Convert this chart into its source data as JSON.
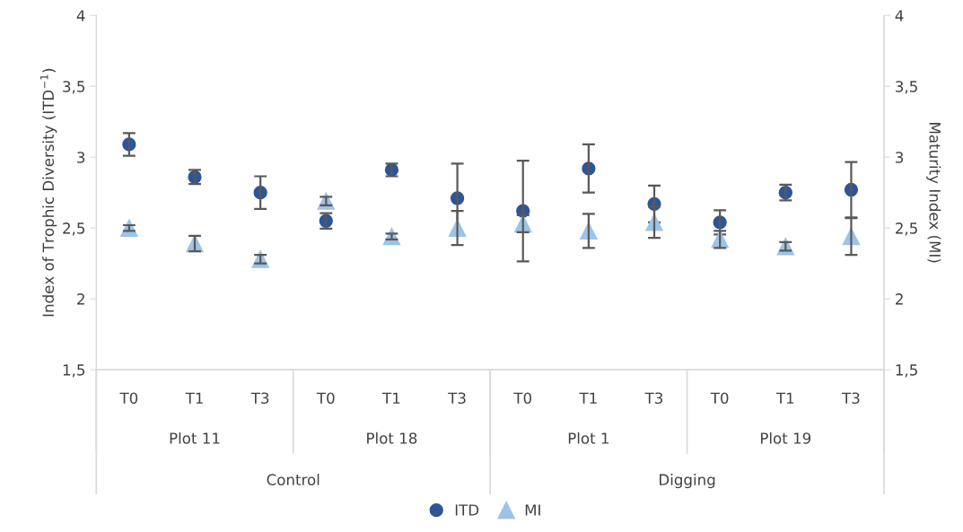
{
  "chart_data": {
    "type": "scatter",
    "ylabel": "Index of Trophic Diversity (ITD$^{−1}$)",
    "y2label": "Maturity Index (MI)",
    "categories": [
      "T0",
      "T1",
      "T3",
      "T0",
      "T1",
      "T3",
      "T0",
      "T1",
      "T3",
      "T0",
      "T1",
      "T3"
    ],
    "annotations": [
      "Plot 11",
      "Plot 18",
      "Plot 1",
      "Plot 19",
      "Control",
      "Digging"
    ],
    "series": [
      {
        "name": "ITD",
        "color": "#2f5597",
        "marker": "circle",
        "values": [
          3.09,
          2.86,
          2.75,
          2.55,
          2.91,
          2.71,
          2.62,
          2.92,
          2.67,
          2.54,
          2.75,
          2.77
        ],
        "errors": [
          0.08,
          0.05,
          0.115,
          0.055,
          0.045,
          0.245,
          0.355,
          0.17,
          0.13,
          0.085,
          0.055,
          0.195
        ]
      },
      {
        "name": "MI",
        "color": "#9dc3e6",
        "marker": "triangle",
        "axis": "y2",
        "values": [
          2.5,
          2.39,
          2.28,
          2.69,
          2.44,
          2.5,
          2.53,
          2.48,
          2.54,
          2.42,
          2.37,
          2.44
        ],
        "errors": [
          0.02,
          0.055,
          0.03,
          0.03,
          0.02,
          0.12,
          0.06,
          0.12,
          0.11,
          0.06,
          0.03,
          0.13
        ]
      }
    ],
    "ylim": [
      1.5,
      4
    ],
    "yticks": [
      {
        "value": 1.5,
        "label": "1,5"
      },
      2,
      {
        "value": 2.5,
        "label": "2,5"
      },
      3,
      {
        "value": 3.5,
        "label": "3,5"
      },
      4
    ],
    "y2lim": [
      1.5,
      4
    ],
    "y2ticks": [
      {
        "value": 1.5,
        "label": "1,5"
      },
      2,
      {
        "value": 2.5,
        "label": "2,5"
      },
      3,
      {
        "value": 3.5,
        "label": "3,5"
      },
      4
    ],
    "legend": "bottom",
    "grid": false
  }
}
